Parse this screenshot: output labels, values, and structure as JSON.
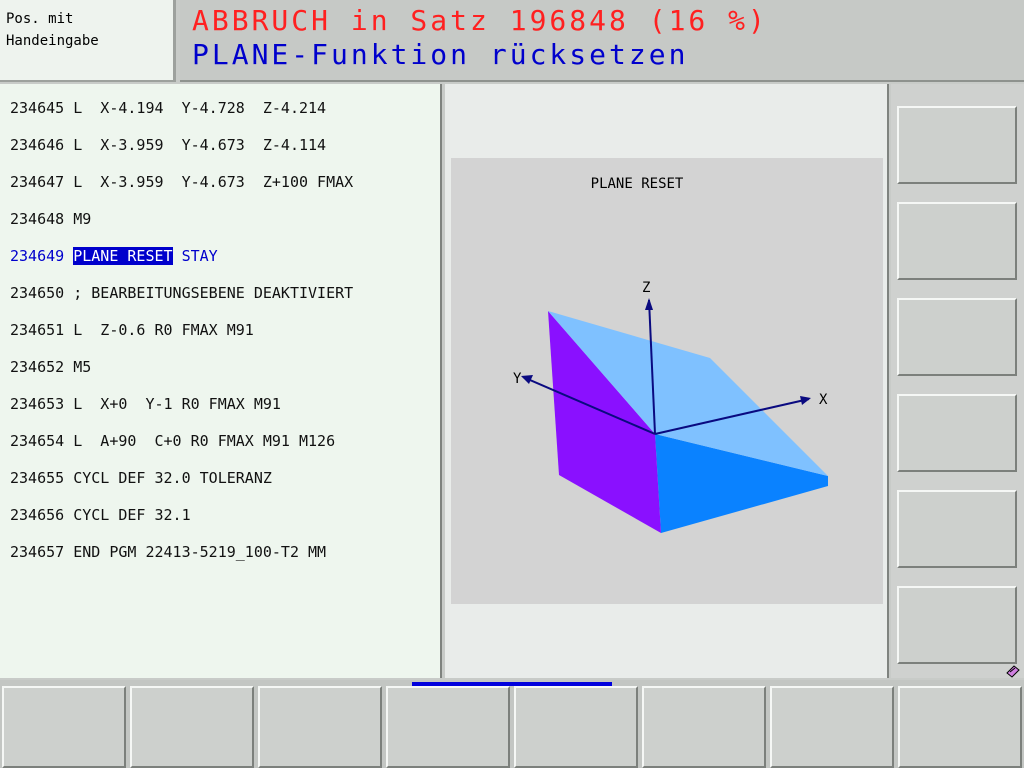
{
  "mode": {
    "line1": "Pos. mit",
    "line2": "Handeingabe"
  },
  "header": {
    "line1": "ABBRUCH in Satz 196848 (16 %)",
    "line2": "PLANE-Funktion rücksetzen",
    "line1_color": "#ff2020",
    "line2_color": "#0000cc"
  },
  "program": {
    "active_line_number": "234649",
    "lines": [
      {
        "text": "234645 L  X-4.194  Y-4.728  Z-4.214"
      },
      {
        "text": "234646 L  X-3.959  Y-4.673  Z-4.114"
      },
      {
        "text": "234647 L  X-3.959  Y-4.673  Z+100 FMAX"
      },
      {
        "text": "234648 M9"
      },
      {
        "number": "234649 ",
        "highlight": "PLANE RESET",
        "rest": " STAY"
      },
      {
        "text": "234650 ; BEARBEITUNGSEBENE DEAKTIVIERT"
      },
      {
        "text": "234651 L  Z-0.6 R0 FMAX M91"
      },
      {
        "text": "234652 M5"
      },
      {
        "text": "234653 L  X+0  Y-1 R0 FMAX M91"
      },
      {
        "text": "234654 L  A+90  C+0 R0 FMAX M91 M126"
      },
      {
        "text": "234655 CYCL DEF 32.0 TOLERANZ"
      },
      {
        "text": "234656 CYCL DEF 32.1"
      },
      {
        "text": "234657 END PGM 22413-5219_100-T2 MM"
      }
    ]
  },
  "graphic": {
    "title": "PLANE RESET",
    "axes": {
      "z": "Z",
      "y": "Y",
      "x": "X"
    },
    "colors": {
      "face_left": "#8a10ff",
      "face_top": "#7fc1ff",
      "face_front": "#0a82ff",
      "axis": "#0a0a80"
    }
  },
  "softkeys_right": [
    "",
    "",
    "",
    "",
    "",
    ""
  ],
  "softkeys_bottom": [
    "",
    "",
    "",
    "",
    "",
    "",
    "",
    ""
  ],
  "icons": {
    "corner": "memory-card-icon"
  }
}
